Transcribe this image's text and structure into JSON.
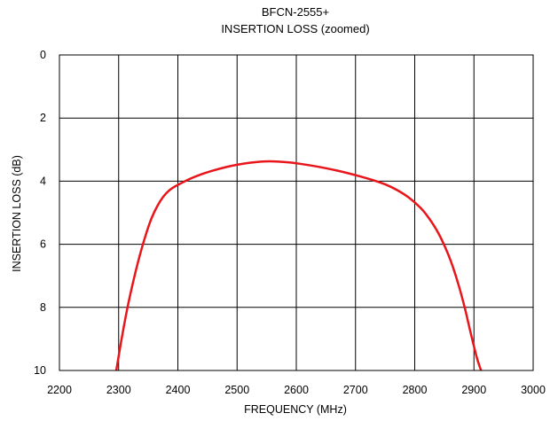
{
  "chart_data": {
    "type": "line",
    "title": "BFCN-2555+",
    "subtitle": "INSERTION LOSS (zoomed)",
    "xlabel": "FREQUENCY (MHz)",
    "ylabel": "INSERTION LOSS (dB)",
    "xlim": [
      2200,
      3000
    ],
    "ylim": [
      0,
      10
    ],
    "y_inverted": true,
    "grid": true,
    "x_ticks": [
      "2200",
      "2300",
      "2400",
      "2500",
      "2600",
      "2700",
      "2800",
      "2900",
      "3000"
    ],
    "y_ticks": [
      "0",
      "2",
      "4",
      "6",
      "8",
      "10"
    ],
    "series": [
      {
        "color": "#e8151b",
        "x": [
          2296,
          2305,
          2315,
          2325,
          2335,
          2345,
          2355,
          2365,
          2375,
          2385,
          2395,
          2405,
          2420,
          2440,
          2460,
          2480,
          2500,
          2520,
          2540,
          2555,
          2570,
          2590,
          2610,
          2630,
          2650,
          2670,
          2690,
          2710,
          2730,
          2750,
          2770,
          2790,
          2810,
          2825,
          2840,
          2855,
          2865,
          2875,
          2885,
          2895,
          2905,
          2912
        ],
        "y": [
          10.0,
          9.0,
          8.0,
          7.15,
          6.4,
          5.75,
          5.2,
          4.8,
          4.5,
          4.3,
          4.17,
          4.07,
          3.93,
          3.78,
          3.66,
          3.56,
          3.48,
          3.42,
          3.38,
          3.37,
          3.38,
          3.41,
          3.46,
          3.52,
          3.59,
          3.67,
          3.76,
          3.86,
          3.97,
          4.1,
          4.28,
          4.52,
          4.85,
          5.2,
          5.65,
          6.25,
          6.75,
          7.35,
          8.05,
          8.85,
          9.6,
          10.0
        ]
      }
    ]
  }
}
